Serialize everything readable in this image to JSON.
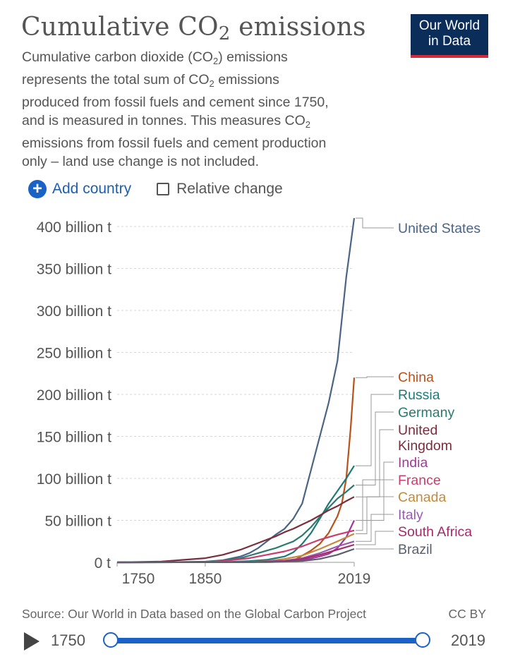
{
  "header": {
    "title_main": "Cumulative CO",
    "title_sub": "2",
    "title_rest": " emissions",
    "subtitle_lines": [
      {
        "a": "Cumulative carbon dioxide (CO",
        "sub": "2",
        "b": ") emissions"
      },
      {
        "a": "represents the total sum of CO",
        "sub": "2",
        "b": " emissions"
      },
      {
        "a": "produced from fossil fuels and cement since 1750,",
        "sub": "",
        "b": ""
      },
      {
        "a": "and is measured in tonnes. This measures CO",
        "sub": "2",
        "b": ""
      },
      {
        "a": "emissions from fossil fuels and cement production",
        "sub": "",
        "b": ""
      },
      {
        "a": "only – land use change is not included.",
        "sub": "",
        "b": ""
      }
    ],
    "logo_line1": "Our World",
    "logo_line2": "in Data"
  },
  "controls": {
    "add_country": "Add country",
    "relative_change": "Relative change"
  },
  "chart_data": {
    "type": "line",
    "title": "Cumulative CO2 emissions",
    "y_unit": "tonnes",
    "ylim": [
      0,
      400
    ],
    "y_ticks": [
      {
        "value": 0,
        "label": "0 t"
      },
      {
        "value": 50,
        "label": "50 billion t"
      },
      {
        "value": 100,
        "label": "100 billion t"
      },
      {
        "value": 150,
        "label": "150 billion t"
      },
      {
        "value": 200,
        "label": "200 billion t"
      },
      {
        "value": 250,
        "label": "250 billion t"
      },
      {
        "value": 300,
        "label": "300 billion t"
      },
      {
        "value": 350,
        "label": "350 billion t"
      },
      {
        "value": 400,
        "label": "400 billion t"
      }
    ],
    "xlim": [
      1750,
      2019
    ],
    "x_ticks": [
      {
        "value": 1750,
        "label": "1750"
      },
      {
        "value": 1850,
        "label": "1850"
      },
      {
        "value": 2019,
        "label": "2019"
      }
    ],
    "grid": true,
    "series": [
      {
        "name": "United States",
        "color": "#4a6488",
        "x": [
          1750,
          1800,
          1850,
          1870,
          1890,
          1900,
          1910,
          1920,
          1930,
          1940,
          1950,
          1960,
          1970,
          1980,
          1990,
          2000,
          2010,
          2019
        ],
        "values": [
          0,
          0.1,
          0.8,
          2.5,
          7,
          11,
          17,
          25,
          33,
          40,
          52,
          70,
          110,
          150,
          190,
          240,
          340,
          410
        ]
      },
      {
        "name": "China",
        "color": "#b8521a",
        "x": [
          1750,
          1900,
          1950,
          1960,
          1970,
          1980,
          1990,
          2000,
          2005,
          2010,
          2015,
          2019
        ],
        "values": [
          0,
          0.2,
          2,
          8,
          14,
          22,
          35,
          55,
          70,
          100,
          160,
          220
        ]
      },
      {
        "name": "Russia",
        "color": "#1e7a78",
        "x": [
          1750,
          1850,
          1880,
          1900,
          1920,
          1940,
          1950,
          1960,
          1970,
          1980,
          1990,
          2000,
          2010,
          2019
        ],
        "values": [
          0,
          0.1,
          0.7,
          1.5,
          3,
          7,
          12,
          22,
          35,
          52,
          70,
          85,
          100,
          115
        ]
      },
      {
        "name": "Germany",
        "color": "#2a7a70",
        "x": [
          1750,
          1850,
          1870,
          1890,
          1900,
          1910,
          1920,
          1930,
          1940,
          1950,
          1960,
          1970,
          1980,
          1990,
          2000,
          2010,
          2019
        ],
        "values": [
          0,
          0.5,
          2,
          5,
          8,
          11,
          14,
          17,
          21,
          25,
          32,
          42,
          54,
          65,
          76,
          84,
          92
        ]
      },
      {
        "name": "United Kingdom",
        "color": "#7a2d3c",
        "x": [
          1750,
          1800,
          1850,
          1870,
          1890,
          1900,
          1910,
          1920,
          1930,
          1940,
          1950,
          1960,
          1970,
          1980,
          1990,
          2000,
          2010,
          2019
        ],
        "values": [
          0,
          1,
          5,
          9,
          15,
          19,
          23,
          27,
          31,
          36,
          40,
          45,
          50,
          56,
          62,
          67,
          73,
          78
        ]
      },
      {
        "name": "India",
        "color": "#a03a9a",
        "x": [
          1750,
          1900,
          1950,
          1960,
          1970,
          1980,
          1990,
          2000,
          2010,
          2019
        ],
        "values": [
          0,
          0.3,
          2,
          3,
          4.5,
          7,
          10,
          17,
          30,
          50
        ]
      },
      {
        "name": "France",
        "color": "#cc3b6e",
        "x": [
          1750,
          1850,
          1870,
          1900,
          1920,
          1940,
          1960,
          1980,
          2000,
          2019
        ],
        "values": [
          0,
          0.3,
          1.5,
          5,
          9,
          13,
          19,
          27,
          33,
          38
        ]
      },
      {
        "name": "Canada",
        "color": "#c48a3a",
        "x": [
          1750,
          1900,
          1920,
          1940,
          1960,
          1980,
          2000,
          2019
        ],
        "values": [
          0,
          0.3,
          1.5,
          4,
          8,
          16,
          25,
          34
        ]
      },
      {
        "name": "Italy",
        "color": "#9a5ab0",
        "x": [
          1750,
          1900,
          1940,
          1960,
          1980,
          2000,
          2019
        ],
        "values": [
          0,
          0.3,
          2,
          5,
          11,
          19,
          25
        ]
      },
      {
        "name": "South Africa",
        "color": "#a62a6a",
        "x": [
          1750,
          1900,
          1940,
          1960,
          1980,
          2000,
          2019
        ],
        "values": [
          0,
          0.2,
          1.5,
          4,
          9,
          15,
          21
        ]
      },
      {
        "name": "Brazil",
        "color": "#5a5f6e",
        "x": [
          1750,
          1920,
          1960,
          1980,
          2000,
          2019
        ],
        "values": [
          0,
          0.2,
          1.5,
          4,
          9,
          16
        ]
      }
    ]
  },
  "footer": {
    "source": "Source: Our World in Data based on the Global Carbon Project",
    "license": "CC BY",
    "start_year": "1750",
    "end_year": "2019"
  }
}
